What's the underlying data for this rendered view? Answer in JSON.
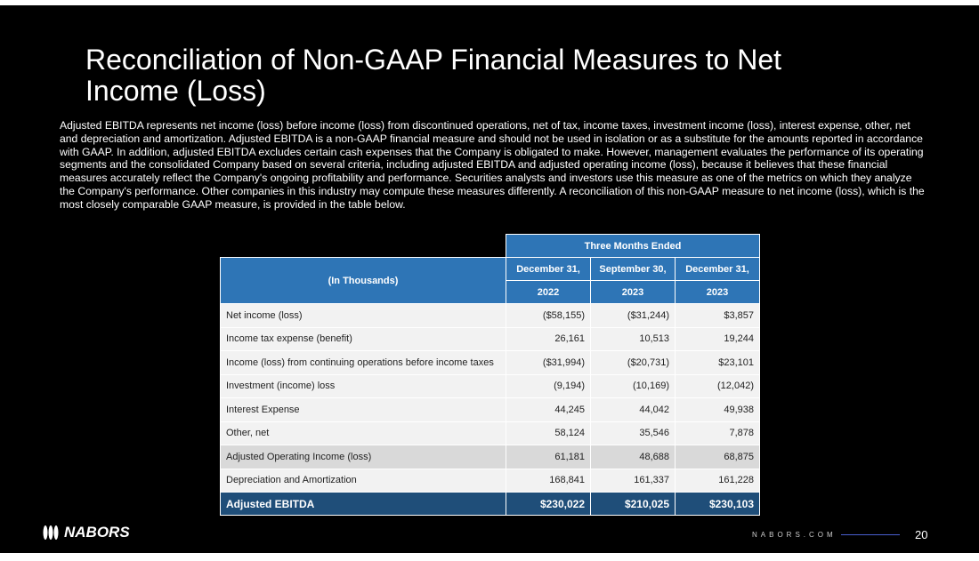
{
  "title": "Reconciliation of Non-GAAP Financial Measures to Net Income (Loss)",
  "intro": "Adjusted EBITDA represents net income (loss) before income (loss) from discontinued operations, net of tax, income taxes, investment income (loss), interest expense, other, net and depreciation and amortization. Adjusted EBITDA is a non-GAAP financial measure and should not be used in isolation or as a substitute for the amounts reported in accordance with GAAP. In addition, adjusted EBITDA excludes certain cash expenses that the Company is obligated to make. However, management evaluates the performance of its operating segments and the consolidated Company based on several criteria, including adjusted EBITDA and adjusted operating income (loss), because it believes that these financial measures accurately reflect the Company's ongoing profitability and performance. Securities analysts and investors use this measure as one of the metrics on which they analyze the Company's performance.  Other companies in this industry may compute these measures differently.  A reconciliation of this non-GAAP measure to net income (loss), which is the most closely comparable GAAP measure, is provided in the table below.",
  "table": {
    "group_header": "Three Months Ended",
    "row_header": "(In Thousands)",
    "columns": [
      {
        "date": "December 31,",
        "year": "2022"
      },
      {
        "date": "September 30,",
        "year": "2023"
      },
      {
        "date": "December 31,",
        "year": "2023"
      }
    ],
    "rows": [
      {
        "label": "Net income (loss)",
        "values": [
          "($58,155)",
          "($31,244)",
          "$3,857"
        ]
      },
      {
        "label": "Income tax expense (benefit)",
        "values": [
          "26,161",
          "10,513",
          "19,244"
        ]
      },
      {
        "label": "Income (loss) from continuing operations before income taxes",
        "values": [
          "($31,994)",
          "($20,731)",
          "$23,101"
        ]
      },
      {
        "label": "Investment (income) loss",
        "values": [
          "(9,194)",
          "(10,169)",
          "(12,042)"
        ]
      },
      {
        "label": "Interest Expense",
        "values": [
          "44,245",
          "44,042",
          "49,938"
        ]
      },
      {
        "label": "Other, net",
        "values": [
          "58,124",
          "35,546",
          "7,878"
        ]
      },
      {
        "label": "Adjusted Operating Income (loss)",
        "values": [
          "61,181",
          "48,688",
          "68,875"
        ]
      },
      {
        "label": "Depreciation and Amortization",
        "values": [
          "168,841",
          "161,337",
          "161,228"
        ]
      }
    ],
    "total": {
      "label": "Adjusted EBITDA",
      "values": [
        "$230,022",
        "$210,025",
        "$230,103"
      ]
    }
  },
  "footer": {
    "logo": "NABORS",
    "site": "NABORS.COM",
    "page": "20"
  }
}
